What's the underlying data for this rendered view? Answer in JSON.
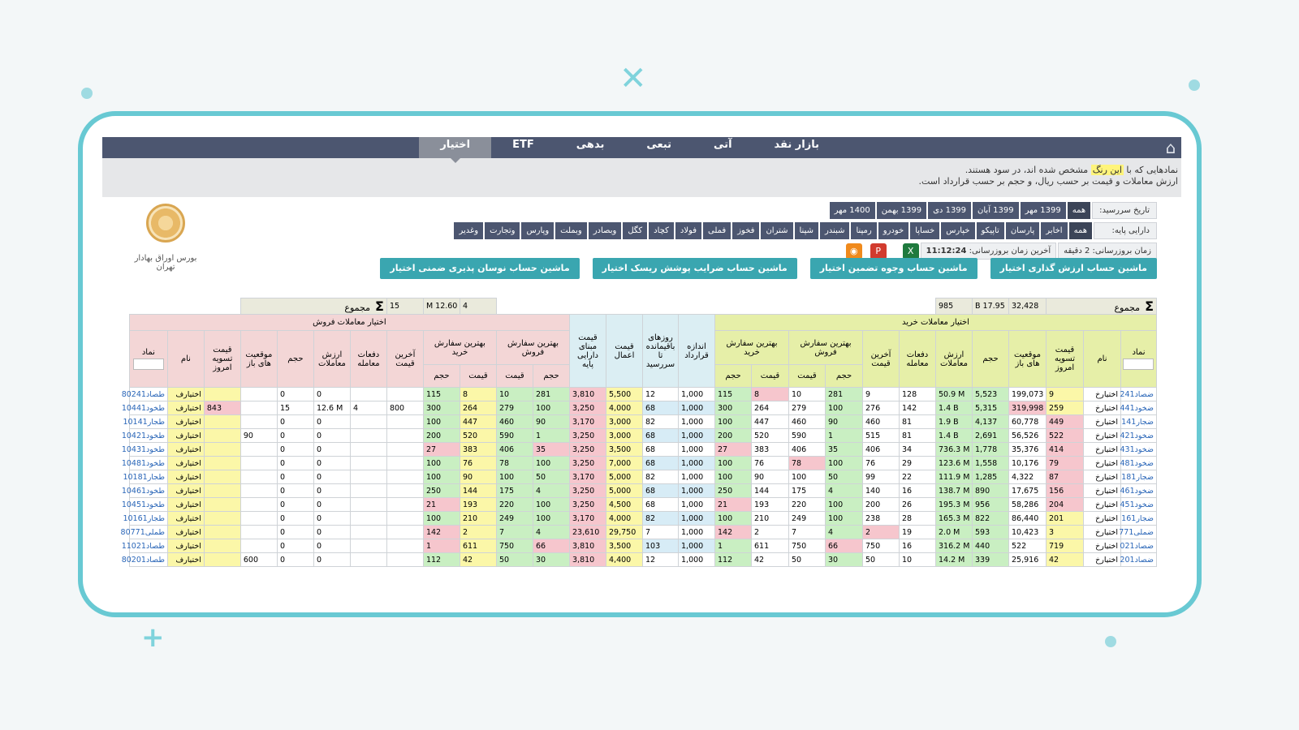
{
  "nav": {
    "tabs": [
      "بازار نقد",
      "آتی",
      "تبعی",
      "بدهی",
      "ETF",
      "اختیار"
    ],
    "active": "اختیار"
  },
  "notice": {
    "line1_a": "نمادهایی که با",
    "line1_hl": "این رنگ",
    "line1_b": "مشخص شده اند، در سود هستند.",
    "line2": "ارزش معاملات و قیمت بر حسب ریال، و حجم بر حسب قرارداد است."
  },
  "logo": {
    "name": "بورس اوراق بهادار تهران"
  },
  "filters": {
    "due_label": "تاریخ سررسید:",
    "due_chips": [
      "همه",
      "1399 مهر",
      "1399 آبان",
      "1399 دی",
      "1399 بهمن",
      "1400 مهر"
    ],
    "base_label": "دارایی پایه:",
    "base_chips": [
      "همه",
      "اخابر",
      "پارسان",
      "تاپیکو",
      "خپارس",
      "خساپا",
      "خودرو",
      "رمپنا",
      "شبندر",
      "شپنا",
      "شتران",
      "فخوز",
      "فملی",
      "فولاد",
      "کچاد",
      "کگل",
      "وبصادر",
      "وبملت",
      "وپارس",
      "وتجارت",
      "وغدیر"
    ],
    "update_label": "زمان بروزرسانی:",
    "update_value": "2",
    "update_unit": "دقیقه",
    "last_update_label": "آخرین زمان بروزرسانی:",
    "last_update_value": "11:12:24"
  },
  "icons": {
    "excel": "excel-icon",
    "pdf": "pdf-icon",
    "rss": "rss-icon"
  },
  "buttons": [
    "ماشین حساب ارزش گذاری اختیار",
    "ماشین حساب وجوه تضمین اختیار",
    "ماشین حساب ضرایب پوشش ریسک اختیار",
    "ماشین حساب نوسان پذیری ضمنی اختیار"
  ],
  "summary": {
    "label": "مجموع",
    "buy": [
      "32,428",
      "B 17.95",
      "985"
    ],
    "sell": [
      "4",
      "M 12.60",
      "15"
    ]
  },
  "headers": {
    "buy_group": "اختیار معاملات خرید",
    "sell_group": "اختیار معاملات فروش",
    "symbol": "نماد",
    "name": "نام",
    "settle": "قیمت تسویه امروز",
    "open": "موقعیت های باز",
    "volume": "حجم",
    "value": "ارزش معاملات",
    "count": "دفعات معامله",
    "last": "آخرین قیمت",
    "best_sell": "بهترین سفارش فروش",
    "best_buy": "بهترین سفارش خرید",
    "qty": "حجم",
    "price": "قیمت",
    "contract": "اندازه قرارداد",
    "days": "روزهای باقیمانده تا سررسید",
    "strike": "قیمت اعمال",
    "base_price": "قیمت مبنای دارایی پایه"
  },
  "rows": [
    {
      "bs": "ضصاد241",
      "bn": "اختیارخ",
      "bset": "9",
      "bop": "199,073",
      "bvol": "5,523",
      "bval": "50.9 M",
      "bcnt": "128",
      "blast": "9",
      "bsv": "281",
      "bsp": "10",
      "bbp": "8",
      "bbv": "115",
      "con": "1,000",
      "days": "12",
      "strike": "5,500",
      "base": "3,810",
      "ssv": "281",
      "ssp": "10",
      "sbp": "8",
      "sbv": "115",
      "slast": "",
      "scnt": "",
      "sval": "0",
      "svol": "0",
      "sop": "",
      "sset": "",
      "sn": "اختیارف",
      "ss": "طصاد80241"
    },
    {
      "bs": "ضخود441",
      "bn": "اختیارخ",
      "bset": "259",
      "bop": "319,998",
      "bvol": "5,315",
      "bval": "1.4 B",
      "bcnt": "142",
      "blast": "276",
      "bsv": "100",
      "bsp": "279",
      "bbp": "264",
      "bbv": "300",
      "con": "1,000",
      "days": "68",
      "strike": "4,000",
      "base": "3,250",
      "ssv": "100",
      "ssp": "279",
      "sbp": "264",
      "sbv": "300",
      "slast": "800",
      "scnt": "4",
      "sval": "12.6 M",
      "svol": "15",
      "sop": "",
      "sset": "843",
      "sn": "اختیارف",
      "ss": "طخود10441"
    },
    {
      "bs": "ضجار141",
      "bn": "اختیارخ",
      "bset": "449",
      "bop": "60,778",
      "bvol": "4,137",
      "bval": "1.9 B",
      "bcnt": "81",
      "blast": "460",
      "bsv": "90",
      "bsp": "460",
      "bbp": "447",
      "bbv": "100",
      "con": "1,000",
      "days": "82",
      "strike": "3,000",
      "base": "3,170",
      "ssv": "90",
      "ssp": "460",
      "sbp": "447",
      "sbv": "100",
      "slast": "",
      "scnt": "",
      "sval": "0",
      "svol": "0",
      "sop": "",
      "sset": "",
      "sn": "اختیارف",
      "ss": "طجار10141"
    },
    {
      "bs": "ضخود421",
      "bn": "اختیارخ",
      "bset": "522",
      "bop": "56,526",
      "bvol": "2,691",
      "bval": "1.4 B",
      "bcnt": "81",
      "blast": "515",
      "bsv": "1",
      "bsp": "590",
      "bbp": "520",
      "bbv": "200",
      "con": "1,000",
      "days": "68",
      "strike": "3,000",
      "base": "3,250",
      "ssv": "1",
      "ssp": "590",
      "sbp": "520",
      "sbv": "200",
      "slast": "",
      "scnt": "",
      "sval": "0",
      "svol": "0",
      "sop": "90",
      "sset": "",
      "sn": "اختیارف",
      "ss": "طخود10421"
    },
    {
      "bs": "ضخود431",
      "bn": "اختیارخ",
      "bset": "414",
      "bop": "35,376",
      "bvol": "1,778",
      "bval": "736.3 M",
      "bcnt": "34",
      "blast": "406",
      "bsv": "35",
      "bsp": "406",
      "bbp": "383",
      "bbv": "27",
      "con": "1,000",
      "days": "68",
      "strike": "3,500",
      "base": "3,250",
      "ssv": "35",
      "ssp": "406",
      "sbp": "383",
      "sbv": "27",
      "slast": "",
      "scnt": "",
      "sval": "0",
      "svol": "0",
      "sop": "",
      "sset": "",
      "sn": "اختیارف",
      "ss": "طخود10431"
    },
    {
      "bs": "ضخود481",
      "bn": "اختیارخ",
      "bset": "79",
      "bop": "10,176",
      "bvol": "1,558",
      "bval": "123.6 M",
      "bcnt": "29",
      "blast": "76",
      "bsv": "100",
      "bsp": "78",
      "bbp": "76",
      "bbv": "100",
      "con": "1,000",
      "days": "68",
      "strike": "7,000",
      "base": "3,250",
      "ssv": "100",
      "ssp": "78",
      "sbp": "76",
      "sbv": "100",
      "slast": "",
      "scnt": "",
      "sval": "0",
      "svol": "0",
      "sop": "",
      "sset": "",
      "sn": "اختیارف",
      "ss": "طخود10481"
    },
    {
      "bs": "ضجار181",
      "bn": "اختیارخ",
      "bset": "87",
      "bop": "4,322",
      "bvol": "1,285",
      "bval": "111.9 M",
      "bcnt": "22",
      "blast": "99",
      "bsv": "50",
      "bsp": "100",
      "bbp": "90",
      "bbv": "100",
      "con": "1,000",
      "days": "82",
      "strike": "5,000",
      "base": "3,170",
      "ssv": "50",
      "ssp": "100",
      "sbp": "90",
      "sbv": "100",
      "slast": "",
      "scnt": "",
      "sval": "0",
      "svol": "0",
      "sop": "",
      "sset": "",
      "sn": "اختیارف",
      "ss": "طجار10181"
    },
    {
      "bs": "ضخود461",
      "bn": "اختیارخ",
      "bset": "156",
      "bop": "17,675",
      "bvol": "890",
      "bval": "138.7 M",
      "bcnt": "16",
      "blast": "140",
      "bsv": "4",
      "bsp": "175",
      "bbp": "144",
      "bbv": "250",
      "con": "1,000",
      "days": "68",
      "strike": "5,000",
      "base": "3,250",
      "ssv": "4",
      "ssp": "175",
      "sbp": "144",
      "sbv": "250",
      "slast": "",
      "scnt": "",
      "sval": "0",
      "svol": "0",
      "sop": "",
      "sset": "",
      "sn": "اختیارف",
      "ss": "طخود10461"
    },
    {
      "bs": "ضخود451",
      "bn": "اختیارخ",
      "bset": "204",
      "bop": "58,286",
      "bvol": "956",
      "bval": "195.3 M",
      "bcnt": "26",
      "blast": "200",
      "bsv": "100",
      "bsp": "220",
      "bbp": "193",
      "bbv": "21",
      "con": "1,000",
      "days": "68",
      "strike": "4,500",
      "base": "3,250",
      "ssv": "100",
      "ssp": "220",
      "sbp": "193",
      "sbv": "21",
      "slast": "",
      "scnt": "",
      "sval": "0",
      "svol": "0",
      "sop": "",
      "sset": "",
      "sn": "اختیارف",
      "ss": "طخود10451"
    },
    {
      "bs": "ضجار161",
      "bn": "اختیارخ",
      "bset": "201",
      "bop": "86,440",
      "bvol": "822",
      "bval": "165.3 M",
      "bcnt": "28",
      "blast": "238",
      "bsv": "100",
      "bsp": "249",
      "bbp": "210",
      "bbv": "100",
      "con": "1,000",
      "days": "82",
      "strike": "4,000",
      "base": "3,170",
      "ssv": "100",
      "ssp": "249",
      "sbp": "210",
      "sbv": "100",
      "slast": "",
      "scnt": "",
      "sval": "0",
      "svol": "0",
      "sop": "",
      "sset": "",
      "sn": "اختیارف",
      "ss": "طجار10161"
    },
    {
      "bs": "ضملی771",
      "bn": "اختیارخ",
      "bset": "3",
      "bop": "10,423",
      "bvol": "593",
      "bval": "2.0 M",
      "bcnt": "19",
      "blast": "2",
      "bsv": "4",
      "bsp": "7",
      "bbp": "2",
      "bbv": "142",
      "con": "1,000",
      "days": "7",
      "strike": "29,750",
      "base": "23,610",
      "ssv": "4",
      "ssp": "7",
      "sbp": "2",
      "sbv": "142",
      "slast": "",
      "scnt": "",
      "sval": "0",
      "svol": "0",
      "sop": "",
      "sset": "",
      "sn": "اختیارف",
      "ss": "طملی80771"
    },
    {
      "bs": "ضصاد021",
      "bn": "اختیارخ",
      "bset": "719",
      "bop": "522",
      "bvol": "440",
      "bval": "316.2 M",
      "bcnt": "16",
      "blast": "750",
      "bsv": "66",
      "bsp": "750",
      "bbp": "611",
      "bbv": "1",
      "con": "1,000",
      "days": "103",
      "strike": "3,500",
      "base": "3,810",
      "ssv": "66",
      "ssp": "750",
      "sbp": "611",
      "sbv": "1",
      "slast": "",
      "scnt": "",
      "sval": "0",
      "svol": "0",
      "sop": "",
      "sset": "",
      "sn": "اختیارف",
      "ss": "طصاد11021"
    },
    {
      "bs": "ضصاد201",
      "bn": "اختیارخ",
      "bset": "42",
      "bop": "25,916",
      "bvol": "339",
      "bval": "14.2 M",
      "bcnt": "10",
      "blast": "50",
      "bsv": "30",
      "bsp": "50",
      "bbp": "42",
      "bbv": "112",
      "con": "1,000",
      "days": "12",
      "strike": "4,400",
      "base": "3,810",
      "ssv": "30",
      "ssp": "50",
      "sbp": "42",
      "sbv": "112",
      "slast": "",
      "scnt": "",
      "sval": "0",
      "svol": "0",
      "sop": "600",
      "sset": "",
      "sn": "اختیارف",
      "ss": "طصاد80201"
    }
  ]
}
